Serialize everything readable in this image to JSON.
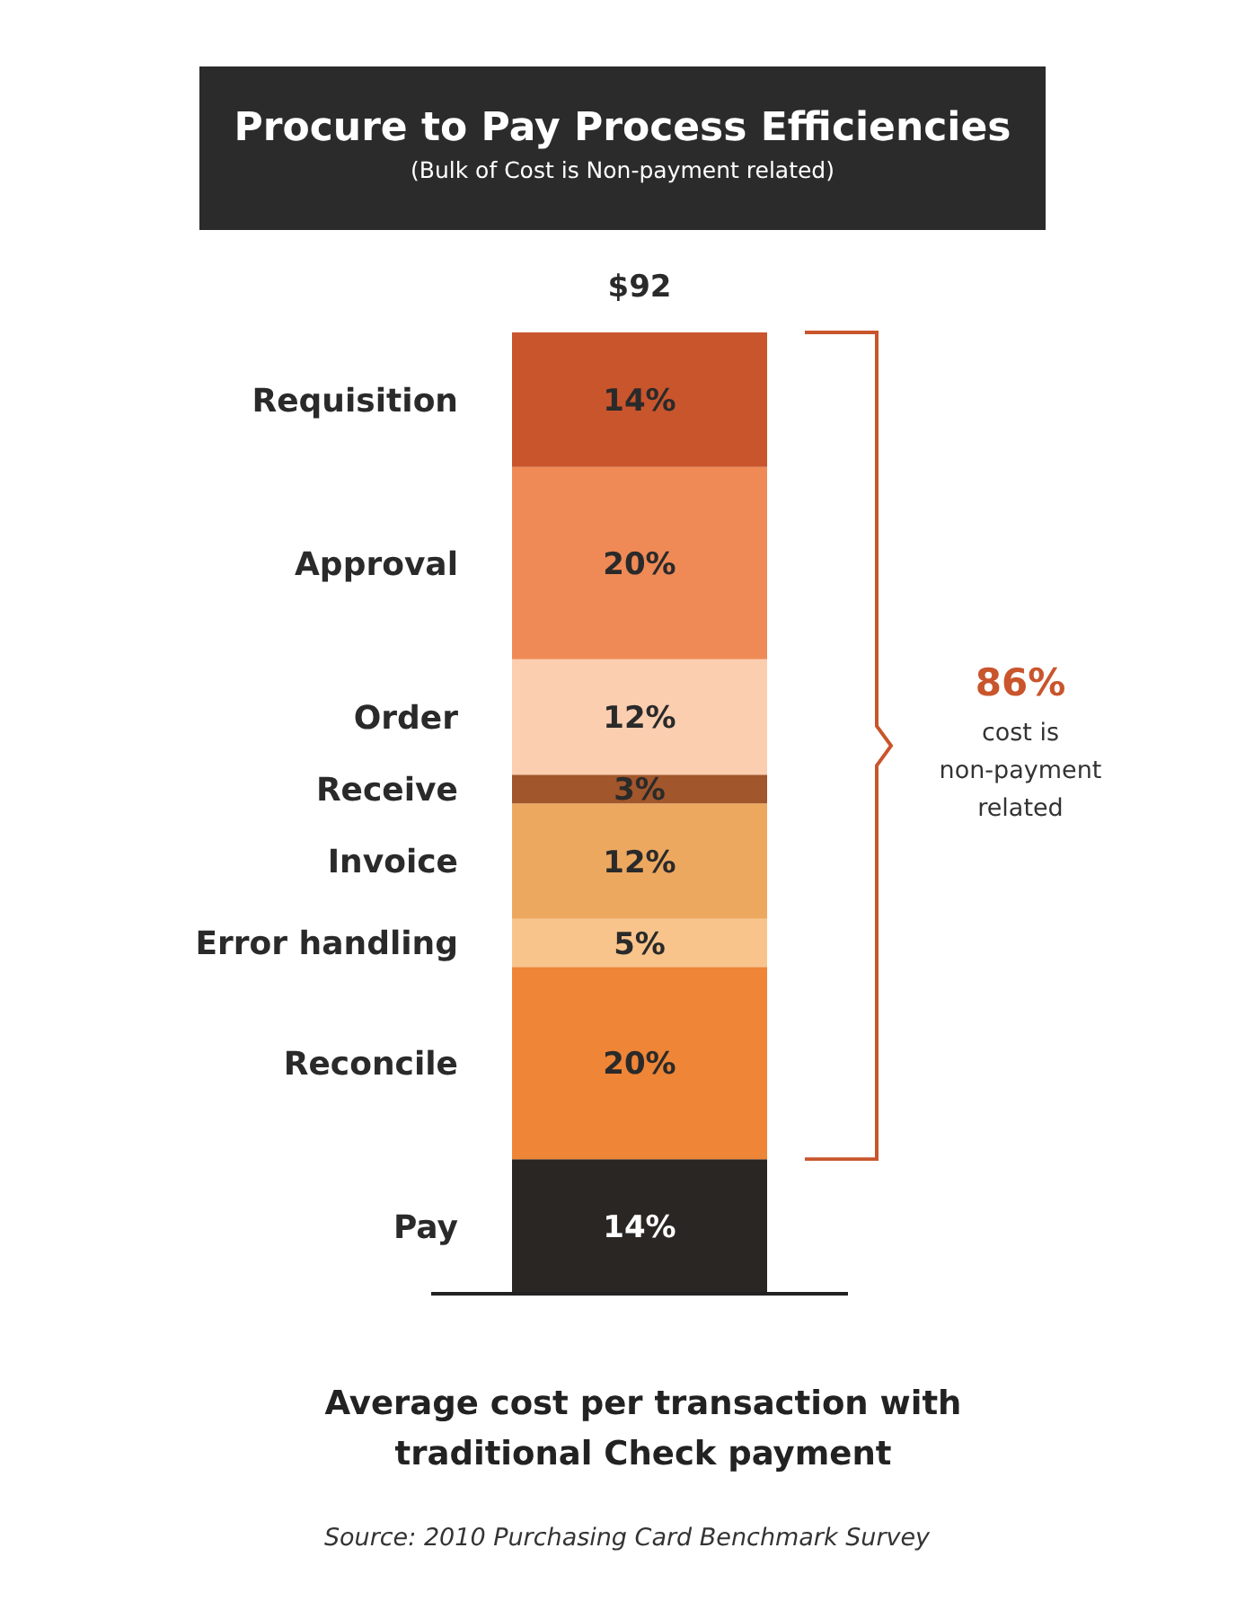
{
  "chart_data": {
    "type": "bar",
    "stacked": true,
    "title": "Procure to Pay Process Efficiencies",
    "subtitle": "(Bulk of Cost is Non-payment related)",
    "xlabel": "Average cost per transaction with traditional Check payment",
    "categories": [
      null
    ],
    "series": [
      {
        "name": "Pay",
        "color": "#2a2623",
        "values": [
          14
        ],
        "value_labels": [
          "14%"
        ]
      },
      {
        "name": "Reconcile",
        "color": "#ef8536",
        "values": [
          20
        ],
        "value_labels": [
          "20%"
        ]
      },
      {
        "name": "Error handling",
        "color": "#f8c48c",
        "values": [
          5
        ],
        "value_labels": [
          "5%"
        ]
      },
      {
        "name": "Invoice",
        "color": "#eda860",
        "values": [
          12
        ],
        "value_labels": [
          "12%"
        ]
      },
      {
        "name": "Receive",
        "color": "#a2562b",
        "values": [
          3
        ],
        "value_labels": [
          "3%"
        ]
      },
      {
        "name": "Order",
        "color": "#fcceb0",
        "values": [
          12
        ],
        "value_labels": [
          "12%"
        ]
      },
      {
        "name": "Approval",
        "color": "#ef8a56",
        "values": [
          20
        ],
        "value_labels": [
          "20%"
        ]
      },
      {
        "name": "Requisition",
        "color": "#c9552c",
        "values": [
          14
        ],
        "value_labels": [
          "14%"
        ]
      }
    ],
    "annotations": [
      "$92",
      "86%",
      "cost is non-payment related",
      "Source: 2010 Purchasing Card Benchmark Survey"
    ]
  }
}
